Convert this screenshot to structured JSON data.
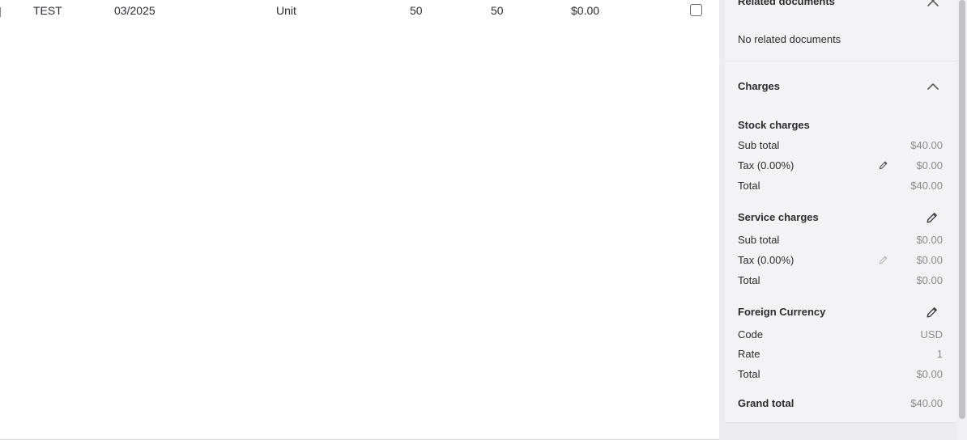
{
  "table_row": {
    "name": "TEST",
    "date": "03/2025",
    "unit": "Unit",
    "qty_a": "50",
    "qty_b": "50",
    "price": "$0.00"
  },
  "related_documents": {
    "title": "Related documents",
    "empty_text": "No related documents"
  },
  "charges": {
    "title": "Charges",
    "stock": {
      "title": "Stock charges",
      "sub_total_label": "Sub total",
      "sub_total_value": "$40.00",
      "tax_label": "Tax (0.00%)",
      "tax_value": "$0.00",
      "total_label": "Total",
      "total_value": "$40.00"
    },
    "service": {
      "title": "Service charges",
      "sub_total_label": "Sub total",
      "sub_total_value": "$0.00",
      "tax_label": "Tax (0.00%)",
      "tax_value": "$0.00",
      "total_label": "Total",
      "total_value": "$0.00"
    },
    "foreign": {
      "title": "Foreign Currency",
      "code_label": "Code",
      "code_value": "USD",
      "rate_label": "Rate",
      "rate_value": "1",
      "total_label": "Total",
      "total_value": "$0.00"
    },
    "grand_total_label": "Grand total",
    "grand_total_value": "$40.00"
  },
  "icons": {
    "close": "close-icon",
    "collapse": "chevron-up-icon",
    "edit": "pencil-icon"
  }
}
